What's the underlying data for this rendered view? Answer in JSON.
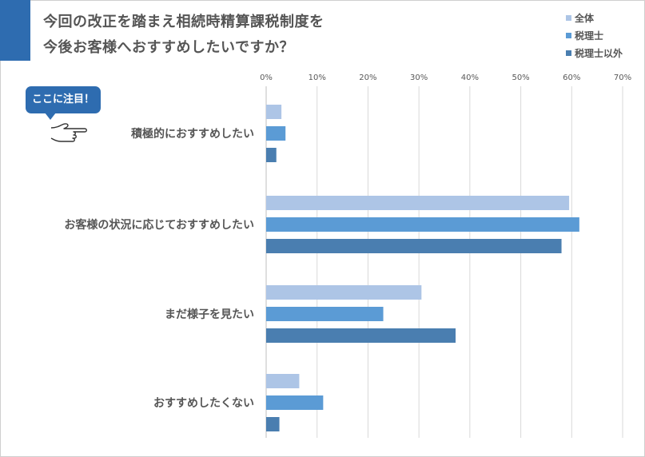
{
  "title": {
    "line1": "今回の改正を踏まえ相続時精算課税制度を",
    "line2": "今後お客様へおすすめしたいですか？"
  },
  "callout": {
    "label": "ここに注目！",
    "icon": "pointing-hand-icon"
  },
  "colors": {
    "accent": "#2e6cb0",
    "series": [
      "#adc5e6",
      "#5b9bd5",
      "#4a7eb0"
    ]
  },
  "chart_data": {
    "type": "bar",
    "orientation": "horizontal",
    "categories": [
      "積極的におすすめしたい",
      "お客様の状況に応じておすすめしたい",
      "まだ様子を見たい",
      "おすすめしたくない"
    ],
    "series": [
      {
        "name": "全体",
        "values": [
          3,
          59.5,
          30.5,
          6.5
        ]
      },
      {
        "name": "税理士",
        "values": [
          3.8,
          61.5,
          23,
          11.2
        ]
      },
      {
        "name": "税理士以外",
        "values": [
          2,
          58,
          37.2,
          2.6
        ]
      }
    ],
    "xlim": [
      0,
      70
    ],
    "ticks": [
      "0%",
      "10%",
      "20%",
      "30%",
      "40%",
      "50%",
      "60%",
      "70%"
    ],
    "tick_values": [
      0,
      10,
      20,
      30,
      40,
      50,
      60,
      70
    ],
    "grid": true,
    "legend_position": "top-right"
  }
}
